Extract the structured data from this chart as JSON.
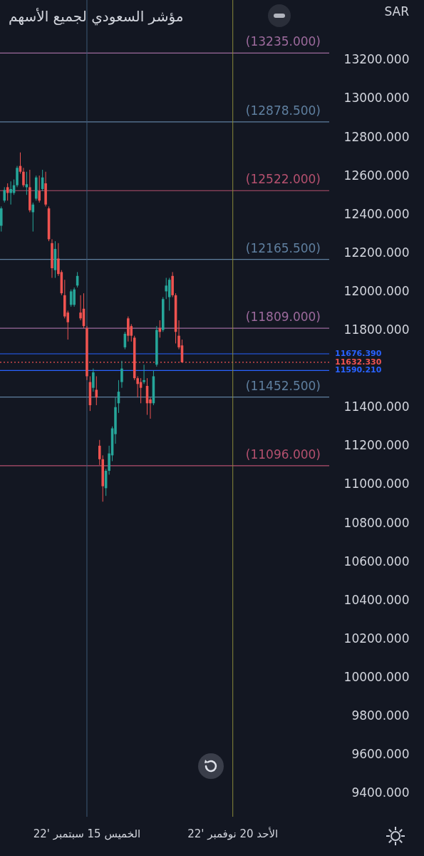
{
  "chart_data": {
    "type": "candlestick",
    "title": "مؤشر السعودي لجميع الأسهم",
    "categories": [
      null,
      null,
      null,
      null,
      null,
      null,
      null,
      null,
      null,
      null,
      null,
      null,
      null,
      null,
      null,
      null,
      null,
      null,
      null,
      null,
      null,
      null,
      null,
      null,
      null,
      null,
      null,
      "الخميس 15 سبتمبر '22",
      null,
      null,
      null,
      null,
      null,
      null,
      null,
      null,
      null,
      null,
      null,
      null,
      null,
      null,
      null,
      null,
      null,
      null,
      null,
      null,
      null,
      null,
      null,
      null,
      null,
      null,
      null,
      null,
      null,
      null,
      null,
      null,
      null,
      null,
      null,
      null,
      null,
      null,
      null,
      null,
      null,
      null,
      null,
      null,
      null,
      "الأحد 20 نوفمبر '22",
      null,
      null,
      null,
      null,
      null,
      null,
      null,
      null,
      null,
      null,
      null,
      null,
      null,
      null,
      null,
      null,
      null,
      null,
      null,
      null,
      null,
      null,
      null,
      null,
      null,
      null,
      null,
      null,
      null,
      null
    ],
    "ohlc": [
      [
        12340,
        12440,
        12310,
        12430
      ],
      [
        12470,
        12540,
        12460,
        12525
      ],
      [
        12540,
        12560,
        12470,
        12510
      ],
      [
        12510,
        12570,
        12450,
        12530
      ],
      [
        12510,
        12580,
        12500,
        12550
      ],
      [
        12550,
        12650,
        12540,
        12640
      ],
      [
        12650,
        12720,
        12610,
        12620
      ],
      [
        12620,
        12640,
        12540,
        12550
      ],
      [
        12540,
        12620,
        12500,
        12555
      ],
      [
        12540,
        12630,
        12410,
        12420
      ],
      [
        12410,
        12460,
        12310,
        12450
      ],
      [
        12480,
        12600,
        12470,
        12590
      ],
      [
        12520,
        12600,
        12460,
        12470
      ],
      [
        12530,
        12630,
        12520,
        12590
      ],
      [
        12560,
        12620,
        12440,
        12450
      ],
      [
        12430,
        12440,
        12260,
        12270
      ],
      [
        12250,
        12270,
        12070,
        12120
      ],
      [
        12110,
        12260,
        12070,
        12220
      ],
      [
        12170,
        12250,
        12080,
        12090
      ],
      [
        12100,
        12110,
        11980,
        11990
      ],
      [
        11980,
        12060,
        11860,
        11870
      ],
      [
        11890,
        11900,
        11750,
        11840
      ],
      [
        11930,
        12010,
        11920,
        12000
      ],
      [
        11930,
        12020,
        11920,
        12010
      ],
      [
        12030,
        12100,
        12020,
        12080
      ],
      [
        11890,
        11980,
        11850,
        11860
      ],
      [
        11910,
        11990,
        11810,
        11820
      ],
      [
        11810,
        11820,
        11540,
        11560
      ],
      [
        11530,
        11560,
        11380,
        11410
      ],
      [
        11500,
        11600,
        11480,
        11580
      ],
      [
        11490,
        11560,
        11410,
        11450
      ],
      [
        11200,
        11230,
        11100,
        11130
      ],
      [
        11130,
        11150,
        10910,
        10990
      ],
      [
        10980,
        11080,
        10940,
        11070
      ],
      [
        11070,
        11200,
        11050,
        11160
      ],
      [
        11150,
        11300,
        11120,
        11290
      ],
      [
        11260,
        11450,
        11210,
        11400
      ],
      [
        11420,
        11540,
        11370,
        11480
      ],
      [
        11530,
        11640,
        11500,
        11600
      ],
      [
        11710,
        11790,
        11700,
        11780
      ],
      [
        11860,
        11870,
        11740,
        11770
      ],
      [
        11820,
        11830,
        11740,
        11770
      ],
      [
        11760,
        11770,
        11540,
        11550
      ],
      [
        11550,
        11560,
        11450,
        11520
      ],
      [
        11530,
        11550,
        11420,
        11500
      ],
      [
        11530,
        11620,
        11520,
        11540
      ],
      [
        11510,
        11550,
        11360,
        11420
      ],
      [
        11440,
        11450,
        11340,
        11420
      ],
      [
        11420,
        11590,
        11410,
        11560
      ],
      [
        11620,
        11820,
        11610,
        11800
      ],
      [
        11810,
        11850,
        11760,
        11790
      ],
      [
        11800,
        11970,
        11790,
        11960
      ],
      [
        12000,
        12070,
        11960,
        12030
      ],
      [
        11970,
        12070,
        11900,
        12060
      ],
      [
        12080,
        12100,
        11970,
        11980
      ],
      [
        11980,
        11990,
        11730,
        11790
      ],
      [
        11770,
        11850,
        11700,
        11710
      ],
      [
        11720,
        11750,
        11632.33,
        11632.33
      ],
      null,
      null,
      null,
      null,
      null,
      null,
      null,
      null,
      null,
      null,
      null,
      null,
      null,
      null,
      null,
      null,
      null,
      null,
      null,
      null,
      null,
      null,
      null,
      null,
      null,
      null,
      null,
      null,
      null,
      null,
      null,
      null,
      null,
      null,
      null,
      null,
      null,
      null,
      null,
      null,
      null,
      null,
      null,
      null,
      null,
      null
    ],
    "colors": [
      "#26a69a",
      "#26a69a",
      "#ef5350",
      "#26a69a",
      "#26a69a",
      "#26a69a",
      "#ef5350",
      "#ef5350",
      "#26a69a",
      "#ef5350",
      "#26a69a",
      "#26a69a",
      "#ef5350",
      "#26a69a",
      "#ef5350",
      "#ef5350",
      "#ef5350",
      "#26a69a",
      "#ef5350",
      "#ef5350",
      "#ef5350",
      "#ef5350",
      "#26a69a",
      "#26a69a",
      "#26a69a",
      "#ef5350",
      "#ef5350",
      "#ef5350",
      "#ef5350",
      "#26a69a",
      "#ef5350",
      "#ef5350",
      "#ef5350",
      "#26a69a",
      "#26a69a",
      "#26a69a",
      "#26a69a",
      "#26a69a",
      "#26a69a",
      "#26a69a",
      "#ef5350",
      "#ef5350",
      "#ef5350",
      "#ef5350",
      "#ef5350",
      "#26a69a",
      "#ef5350",
      "#ef5350",
      "#26a69a",
      "#26a69a",
      "#ef5350",
      "#26a69a",
      "#26a69a",
      "#26a69a",
      "#ef5350",
      "#ef5350",
      "#ef5350",
      "#ef5350",
      null,
      null,
      null,
      null,
      null,
      null,
      null,
      null,
      null,
      null,
      null,
      null,
      null,
      null,
      null,
      null,
      null,
      null,
      null,
      null,
      null,
      null,
      null,
      null,
      null,
      null,
      null,
      null,
      null,
      null,
      null,
      null,
      null,
      null,
      null,
      null,
      null,
      null,
      null,
      null,
      null,
      null,
      null,
      null,
      null,
      null
    ],
    "ylim": [
      9277,
      13510
    ],
    "yticks": [
      {
        "value": 9400,
        "label": "9400.000"
      },
      {
        "value": 9600,
        "label": "9600.000"
      },
      {
        "value": 9800,
        "label": "9800.000"
      },
      {
        "value": 10000,
        "label": "10000.000"
      },
      {
        "value": 10200,
        "label": "10200.000"
      },
      {
        "value": 10400,
        "label": "10400.000"
      },
      {
        "value": 10600,
        "label": "10600.000"
      },
      {
        "value": 10800,
        "label": "10800.000"
      },
      {
        "value": 11000,
        "label": "11000.000"
      },
      {
        "value": 11200,
        "label": "11200.000"
      },
      {
        "value": 11400,
        "label": "11400.000"
      },
      {
        "value": 11800,
        "label": "11800.000"
      },
      {
        "value": 12000,
        "label": "12000.000"
      },
      {
        "value": 12200,
        "label": "12200.000"
      },
      {
        "value": 12400,
        "label": "12400.000"
      },
      {
        "value": 12600,
        "label": "12600.000"
      },
      {
        "value": 12800,
        "label": "12800.000"
      },
      {
        "value": 13000,
        "label": "13000.000"
      },
      {
        "value": 13200,
        "label": "13200.000"
      }
    ],
    "ref_lines": [
      {
        "axis": "y",
        "value": 13235,
        "label": "(13235.000)",
        "color": "#9c6a9c"
      },
      {
        "axis": "y",
        "value": 12878.5,
        "label": "(12878.500)",
        "color": "#5f7f9f"
      },
      {
        "axis": "y",
        "value": 12522,
        "label": "(12522.000)",
        "color": "#b4506e"
      },
      {
        "axis": "y",
        "value": 12165.5,
        "label": "(12165.500)",
        "color": "#5f7f9f"
      },
      {
        "axis": "y",
        "value": 11809,
        "label": "(11809.000)",
        "color": "#9c6a9c"
      },
      {
        "axis": "y",
        "value": 11452.5,
        "label": "(11452.500)",
        "color": "#5f7f9f"
      },
      {
        "axis": "y",
        "value": 11096,
        "label": "(11096.000)",
        "color": "#b4506e"
      },
      {
        "axis": "y",
        "value": 11676.39,
        "label": "11676.390",
        "color": "#2962ff"
      },
      {
        "axis": "y",
        "value": 11632.33,
        "label": "11632.330",
        "color": "#ef5350",
        "line_style": "dotted"
      },
      {
        "axis": "y",
        "value": 11590.21,
        "label": "11590.210",
        "color": "#2962ff"
      },
      {
        "axis": "x",
        "value": "الخميس 15 سبتمبر '22",
        "color": "#3e5a78"
      },
      {
        "axis": "x",
        "value": "الأحد 20 نوفمبر '22",
        "color": "#8a8a3a"
      }
    ],
    "annotations": [
      "SAR"
    ]
  }
}
